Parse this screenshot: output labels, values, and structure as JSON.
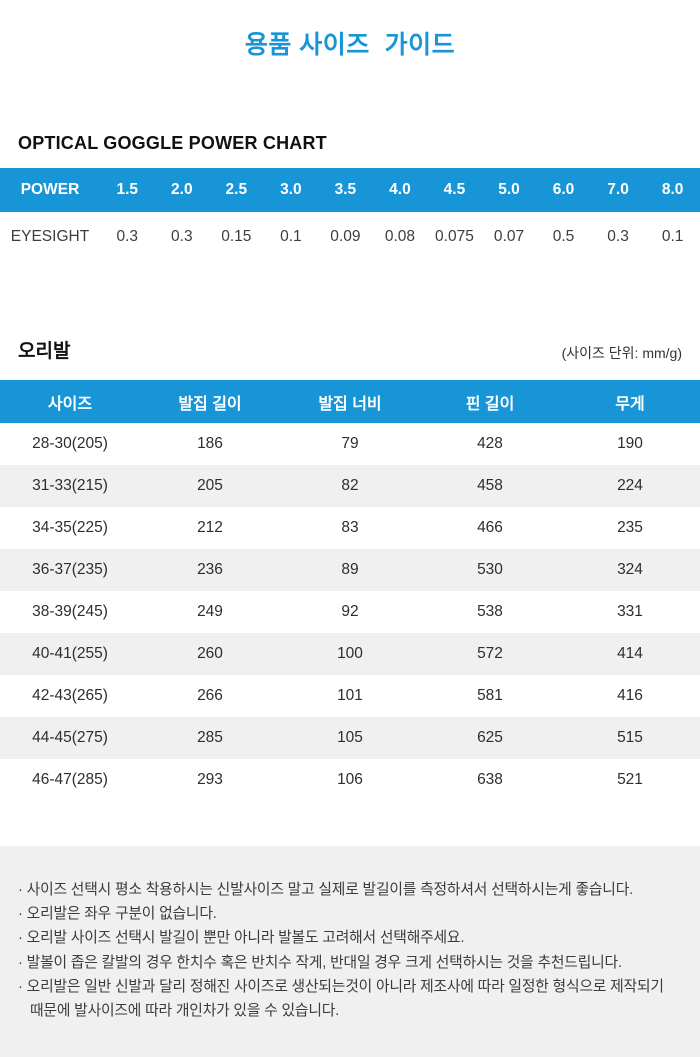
{
  "page": {
    "title": "용품 사이즈  가이드"
  },
  "colors": {
    "accent_blue": "#1795d7",
    "alt_row_gray": "#f0f0f0",
    "footer_bg": "#f0f0f0"
  },
  "power_chart": {
    "heading": "OPTICAL GOGGLE POWER CHART",
    "rows": [
      {
        "label": "POWER",
        "values": [
          "1.5",
          "2.0",
          "2.5",
          "3.0",
          "3.5",
          "4.0",
          "4.5",
          "5.0",
          "6.0",
          "7.0",
          "8.0"
        ]
      },
      {
        "label": "EYESIGHT",
        "values": [
          "0.3",
          "0.3",
          "0.15",
          "0.1",
          "0.09",
          "0.08",
          "0.075",
          "0.07",
          "0.5",
          "0.3",
          "0.1"
        ]
      }
    ]
  },
  "fins": {
    "heading": "오리발",
    "unit_note": "(사이즈 단위: mm/g)",
    "columns": [
      "사이즈",
      "발집 길이",
      "발집 너비",
      "핀 길이",
      "무게"
    ],
    "rows": [
      [
        "28-30(205)",
        "186",
        "79",
        "428",
        "190"
      ],
      [
        "31-33(215)",
        "205",
        "82",
        "458",
        "224"
      ],
      [
        "34-35(225)",
        "212",
        "83",
        "466",
        "235"
      ],
      [
        "36-37(235)",
        "236",
        "89",
        "530",
        "324"
      ],
      [
        "38-39(245)",
        "249",
        "92",
        "538",
        "331"
      ],
      [
        "40-41(255)",
        "260",
        "100",
        "572",
        "414"
      ],
      [
        "42-43(265)",
        "266",
        "101",
        "581",
        "416"
      ],
      [
        "44-45(275)",
        "285",
        "105",
        "625",
        "515"
      ],
      [
        "46-47(285)",
        "293",
        "106",
        "638",
        "521"
      ]
    ]
  },
  "notes_bullet": "·",
  "notes": [
    "사이즈 선택시 평소 착용하시는 신발사이즈 말고 실제로 발길이를 측정하셔서 선택하시는게 좋습니다.",
    "오리발은 좌우 구분이 없습니다.",
    "오리발 사이즈 선택시 발길이 뿐만 아니라 발볼도 고려해서 선택해주세요.",
    "발볼이 좁은 칼발의 경우 한치수 혹은 반치수 작게, 반대일 경우 크게 선택하시는 것을 추천드립니다.",
    "오리발은 일반 신발과 달리 정해진 사이즈로 생산되는것이 아니라 제조사에 따라 일정한 형식으로 제작되기 때문에 발사이즈에 따라 개인차가 있을 수 있습니다."
  ]
}
